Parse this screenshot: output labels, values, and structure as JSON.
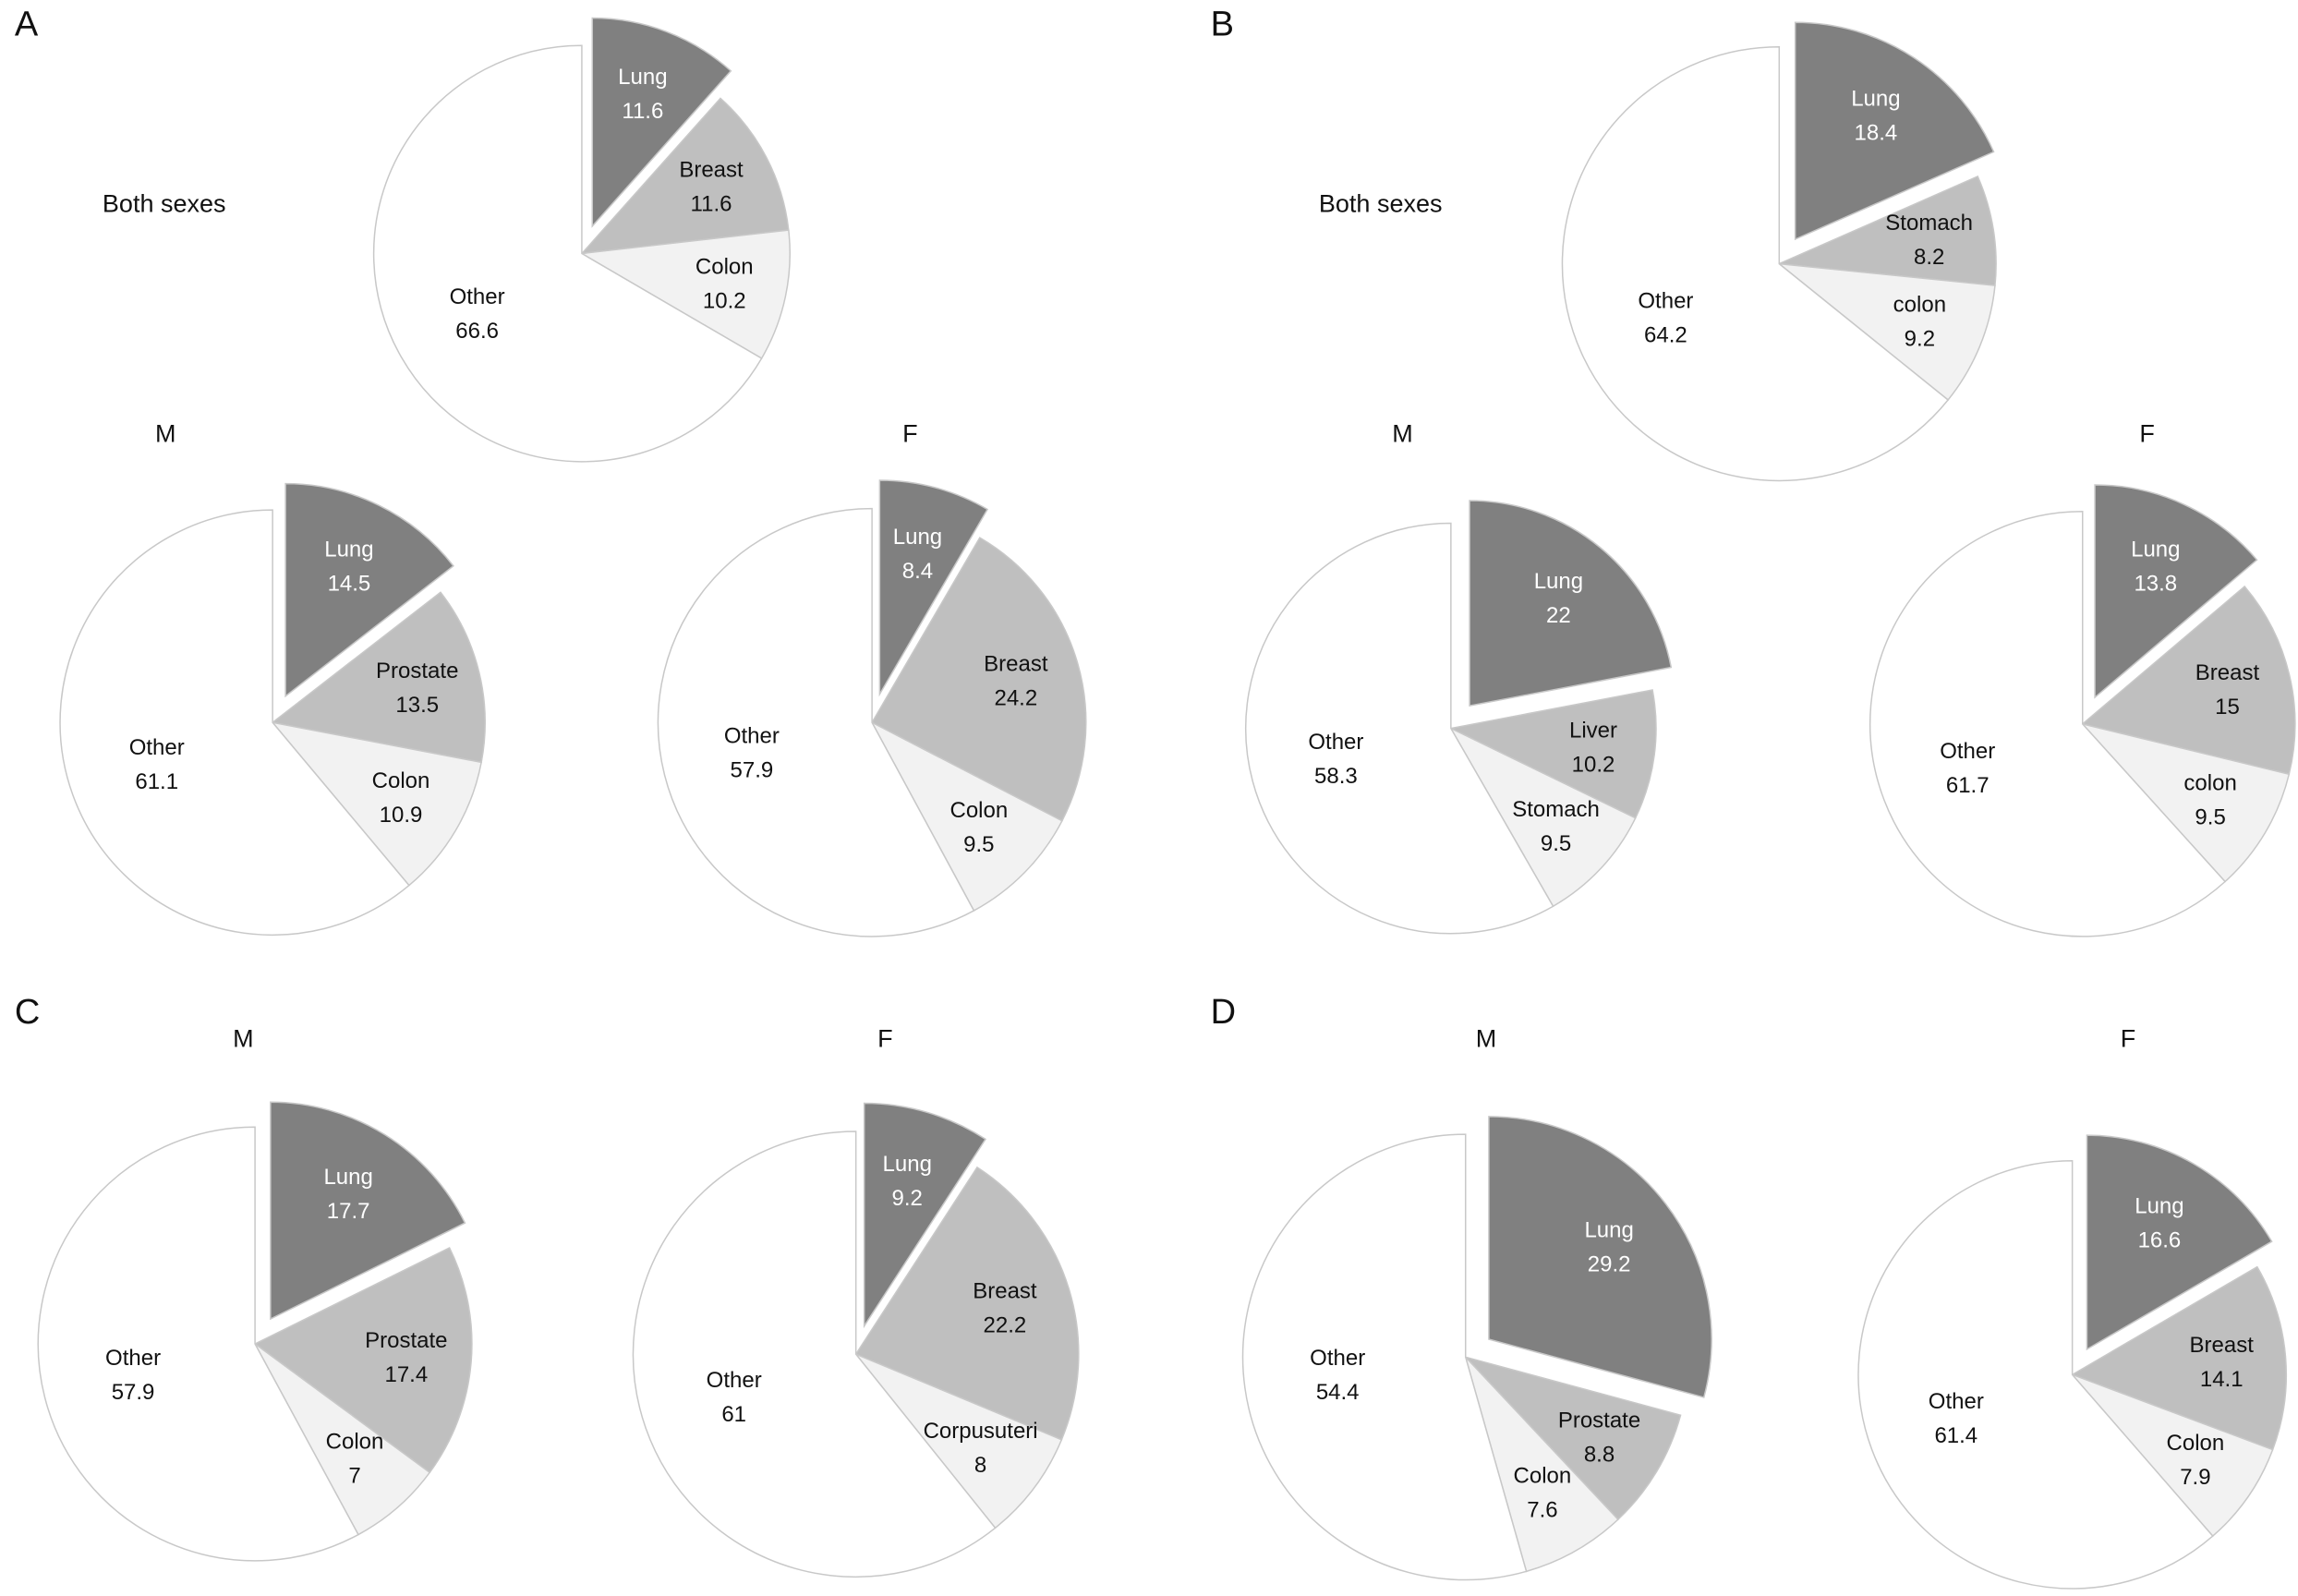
{
  "chart_data": [
    {
      "type": "pie",
      "panel": "A",
      "title": "Both sexes",
      "categories": [
        "Lung",
        "Breast",
        "Colon",
        "Other"
      ],
      "values": [
        11.6,
        11.6,
        10.2,
        66.6
      ],
      "colors": [
        "#808080",
        "#bfbfbf",
        "#f2f2f2",
        "#ffffff"
      ]
    },
    {
      "type": "pie",
      "title": "M",
      "categories": [
        "Lung",
        "Prostate",
        "Colon",
        "Other"
      ],
      "values": [
        14.5,
        13.5,
        10.9,
        61.1
      ],
      "colors": [
        "#808080",
        "#bfbfbf",
        "#f2f2f2",
        "#ffffff"
      ]
    },
    {
      "type": "pie",
      "title": "F",
      "categories": [
        "Lung",
        "Breast",
        "Colon",
        "Other"
      ],
      "values": [
        8.4,
        24.2,
        9.5,
        57.9
      ],
      "colors": [
        "#808080",
        "#bfbfbf",
        "#f2f2f2",
        "#ffffff"
      ]
    },
    {
      "type": "pie",
      "panel": "B",
      "title": "Both sexes",
      "categories": [
        "Lung",
        "Stomach",
        "colon",
        "Other"
      ],
      "values": [
        18.4,
        8.2,
        9.2,
        64.2
      ],
      "colors": [
        "#808080",
        "#bfbfbf",
        "#f2f2f2",
        "#ffffff"
      ]
    },
    {
      "type": "pie",
      "title": "M",
      "categories": [
        "Lung",
        "Liver",
        "Stomach",
        "Other"
      ],
      "values": [
        22,
        10.2,
        9.5,
        58.3
      ],
      "colors": [
        "#808080",
        "#bfbfbf",
        "#f2f2f2",
        "#ffffff"
      ]
    },
    {
      "type": "pie",
      "title": "F",
      "categories": [
        "Lung",
        "Breast",
        "colon",
        "Other"
      ],
      "values": [
        13.8,
        15,
        9.5,
        61.7
      ],
      "colors": [
        "#808080",
        "#bfbfbf",
        "#f2f2f2",
        "#ffffff"
      ]
    },
    {
      "type": "pie",
      "panel": "C",
      "title": "M",
      "categories": [
        "Lung",
        "Prostate",
        "Colon",
        "Other"
      ],
      "values": [
        17.7,
        17.4,
        7,
        57.9
      ],
      "colors": [
        "#808080",
        "#bfbfbf",
        "#f2f2f2",
        "#ffffff"
      ]
    },
    {
      "type": "pie",
      "title": "F",
      "categories": [
        "Lung",
        "Breast",
        "Corpusuteri",
        "Other"
      ],
      "values": [
        9.2,
        22.2,
        8,
        61
      ],
      "colors": [
        "#808080",
        "#bfbfbf",
        "#f2f2f2",
        "#ffffff"
      ]
    },
    {
      "type": "pie",
      "panel": "D",
      "title": "M",
      "categories": [
        "Lung",
        "Prostate",
        "Colon",
        "Other"
      ],
      "values": [
        29.2,
        8.8,
        7.6,
        54.4
      ],
      "colors": [
        "#808080",
        "#bfbfbf",
        "#f2f2f2",
        "#ffffff"
      ]
    },
    {
      "type": "pie",
      "title": "F",
      "categories": [
        "Lung",
        "Breast",
        "Colon",
        "Other"
      ],
      "values": [
        16.6,
        14.1,
        7.9,
        61.4
      ],
      "colors": [
        "#808080",
        "#bfbfbf",
        "#f2f2f2",
        "#ffffff"
      ]
    }
  ]
}
